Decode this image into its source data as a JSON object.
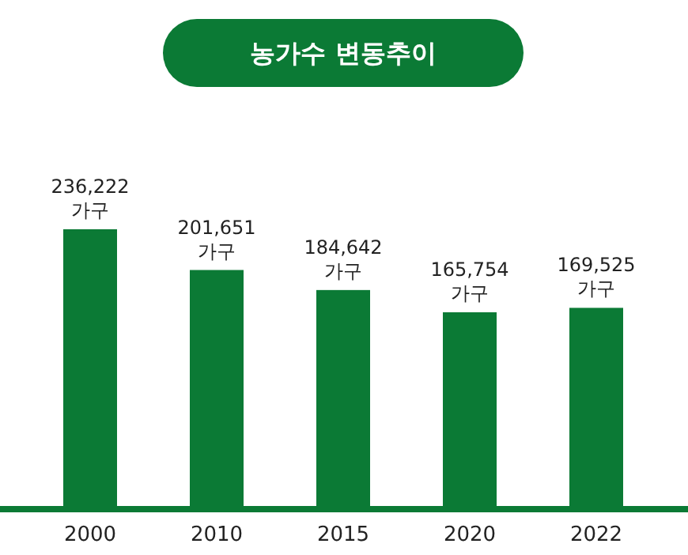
{
  "chart_data": {
    "type": "bar",
    "title": "농가수 변동추이",
    "categories": [
      "2000",
      "2010",
      "2015",
      "2020",
      "2022"
    ],
    "values": [
      236222,
      201651,
      184642,
      165754,
      169525
    ],
    "value_labels": [
      "236,222\n가구",
      "201,651\n가구",
      "184,642\n가구",
      "165,754\n가구",
      "169,525\n가구"
    ],
    "color": "#0b7a35",
    "tick_labels": "x"
  }
}
